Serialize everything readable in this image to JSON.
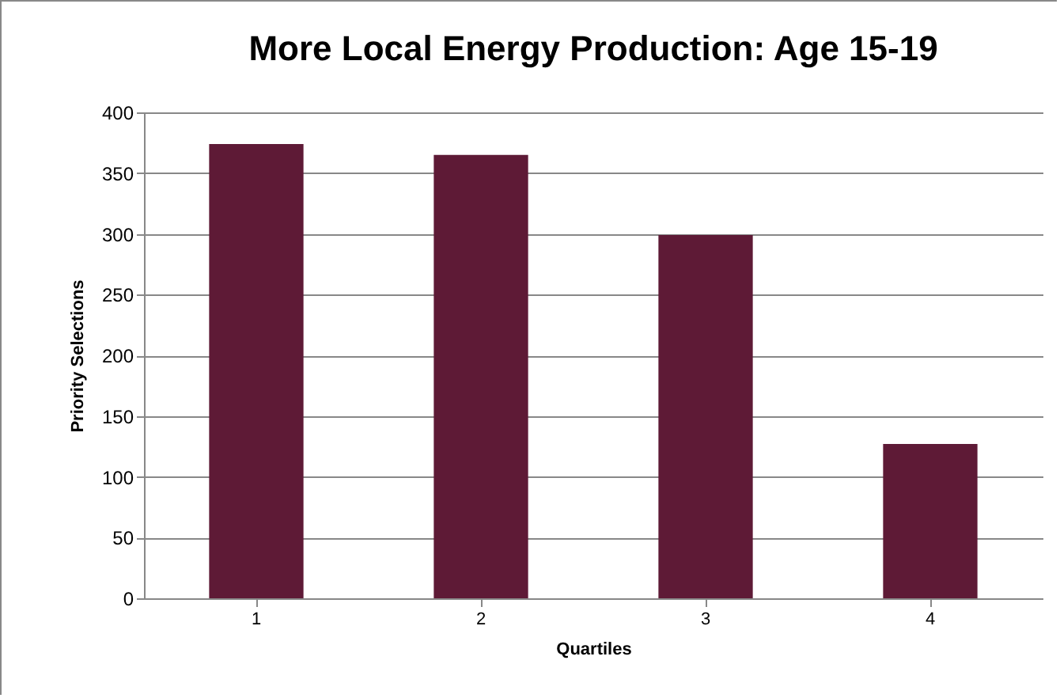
{
  "chart_data": {
    "type": "bar",
    "title": "More Local Energy Production: Age 15-19",
    "xlabel": "Quartiles",
    "ylabel": "Priority Selections",
    "categories": [
      "1",
      "2",
      "3",
      "4"
    ],
    "values": [
      374,
      365,
      299,
      127
    ],
    "color": "#5e1a36",
    "ylim": [
      0,
      400
    ],
    "yticks": [
      0,
      50,
      100,
      150,
      200,
      250,
      300,
      350,
      400
    ],
    "grid": "y"
  }
}
